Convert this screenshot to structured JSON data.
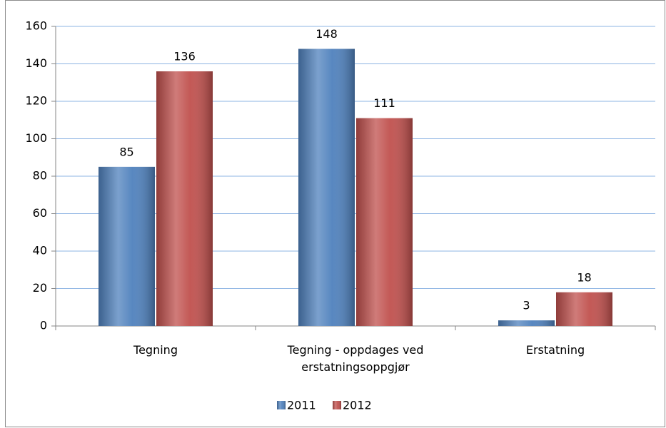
{
  "chart_data": {
    "type": "bar",
    "categories": [
      "Tegning",
      "Tegning - oppdages ved erstatningsoppgjør",
      "Erstatning"
    ],
    "series": [
      {
        "name": "2011",
        "color": "#4f81bd",
        "values": [
          85,
          148,
          3
        ]
      },
      {
        "name": "2012",
        "color": "#c0504d",
        "values": [
          136,
          111,
          18
        ]
      }
    ],
    "ylim": [
      0,
      160
    ],
    "yticks": [
      0,
      20,
      40,
      60,
      80,
      100,
      120,
      140,
      160
    ],
    "grid": true,
    "legend": "bottom"
  }
}
